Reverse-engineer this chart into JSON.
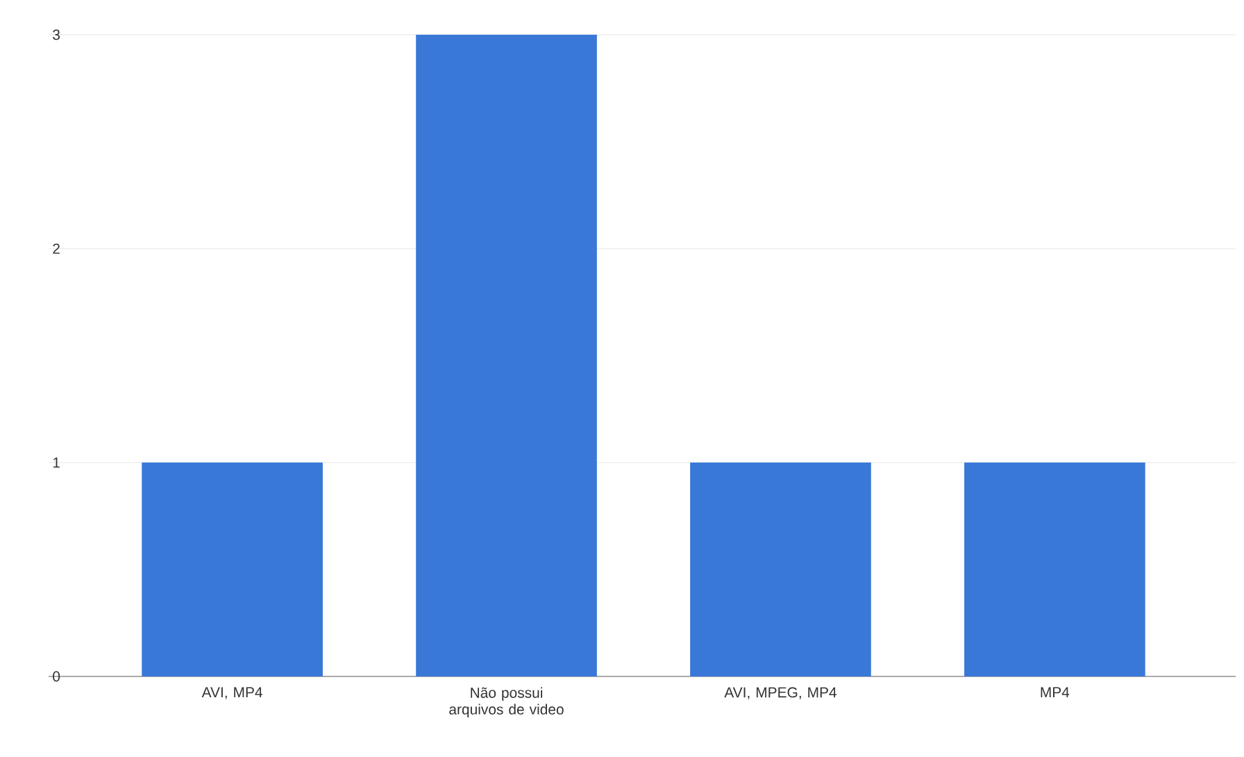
{
  "chart_data": {
    "type": "bar",
    "categories": [
      "AVI, MP4",
      "Não possui arquivos de video",
      "AVI, MPEG, MP4",
      "MP4"
    ],
    "values": [
      1,
      3,
      1,
      1
    ],
    "color": "#3a78d8",
    "ylim": [
      0,
      3
    ],
    "yticks": [
      0,
      1,
      2,
      3
    ],
    "grid": "y"
  }
}
